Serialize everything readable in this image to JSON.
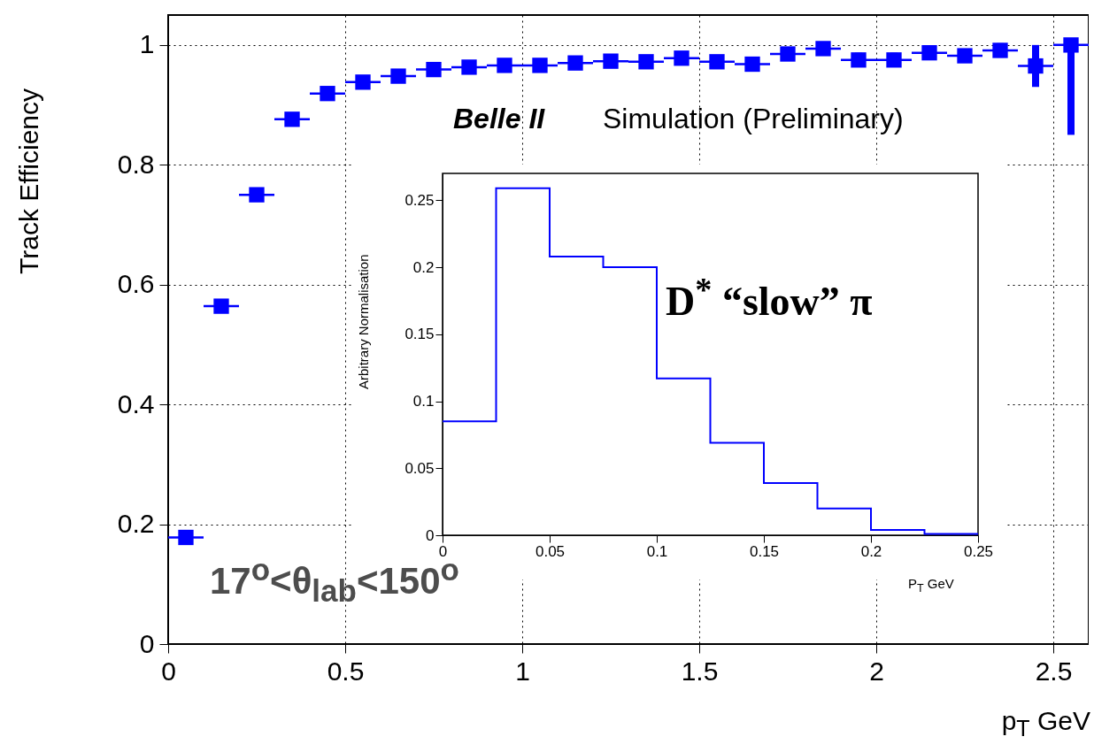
{
  "chart_data": [
    {
      "type": "scatter",
      "xlabel": "p$_{T}$ GeV",
      "ylabel": "Track Efficiency",
      "annotations": [
        "Belle II",
        "Simulation (Preliminary)",
        "17$^{o}$<θ$_{lab}$<150$^{o}$"
      ],
      "x": [
        0.05,
        0.15,
        0.25,
        0.35,
        0.45,
        0.55,
        0.65,
        0.75,
        0.85,
        0.95,
        1.05,
        1.15,
        1.25,
        1.35,
        1.45,
        1.55,
        1.65,
        1.75,
        1.85,
        1.95,
        2.05,
        2.15,
        2.25,
        2.35,
        2.45,
        2.55
      ],
      "values": [
        0.178,
        0.564,
        0.75,
        0.876,
        0.919,
        0.938,
        0.948,
        0.959,
        0.963,
        0.966,
        0.966,
        0.97,
        0.973,
        0.972,
        0.978,
        0.972,
        0.968,
        0.985,
        0.994,
        0.975,
        0.975,
        0.987,
        0.982,
        0.991,
        0.965,
        1.0
      ],
      "errors": [
        null,
        null,
        null,
        null,
        null,
        null,
        null,
        null,
        null,
        null,
        null,
        null,
        null,
        null,
        null,
        null,
        null,
        null,
        null,
        0.012,
        0.012,
        0.012,
        0.01,
        0.012,
        0.035,
        [
          0.85,
          1.0
        ]
      ],
      "xerrors": [
        0.05,
        0.05,
        0.05,
        0.05,
        0.05,
        0.05,
        0.05,
        0.05,
        0.05,
        0.05,
        0.05,
        0.05,
        0.05,
        0.05,
        0.05,
        0.05,
        0.05,
        0.05,
        0.05,
        0.05,
        0.05,
        0.05,
        0.05,
        0.05,
        0.05,
        0.05
      ],
      "color": "#0000ff",
      "marker": "square",
      "grid": true,
      "xlim": [
        0,
        2.6
      ],
      "xticks": [
        0,
        0.5,
        1,
        1.5,
        2,
        2.5
      ],
      "ylim": [
        0,
        1.05
      ],
      "yticks": [
        0,
        0.2,
        0.4,
        0.6,
        0.8,
        1
      ]
    },
    {
      "type": "histogram",
      "xlabel": "P$_{T}$ GeV",
      "ylabel": "Arbitrary Normalisation",
      "annotations": [
        "D$^{*}$ “slow” π"
      ],
      "bins": [
        0,
        0.025,
        0.05,
        0.075,
        0.1,
        0.125,
        0.15,
        0.175,
        0.2,
        0.225,
        0.25
      ],
      "values": [
        0.085,
        0.259,
        0.208,
        0.2,
        0.117,
        0.069,
        0.039,
        0.02,
        0.004,
        0.001
      ],
      "color": "#0000ff",
      "xlim": [
        0,
        0.25
      ],
      "xticks": [
        0,
        0.05,
        0.1,
        0.15,
        0.2,
        0.25
      ],
      "ylim": [
        0,
        0.27
      ],
      "yticks": [
        0,
        0.05,
        0.1,
        0.15,
        0.2,
        0.25
      ]
    }
  ]
}
